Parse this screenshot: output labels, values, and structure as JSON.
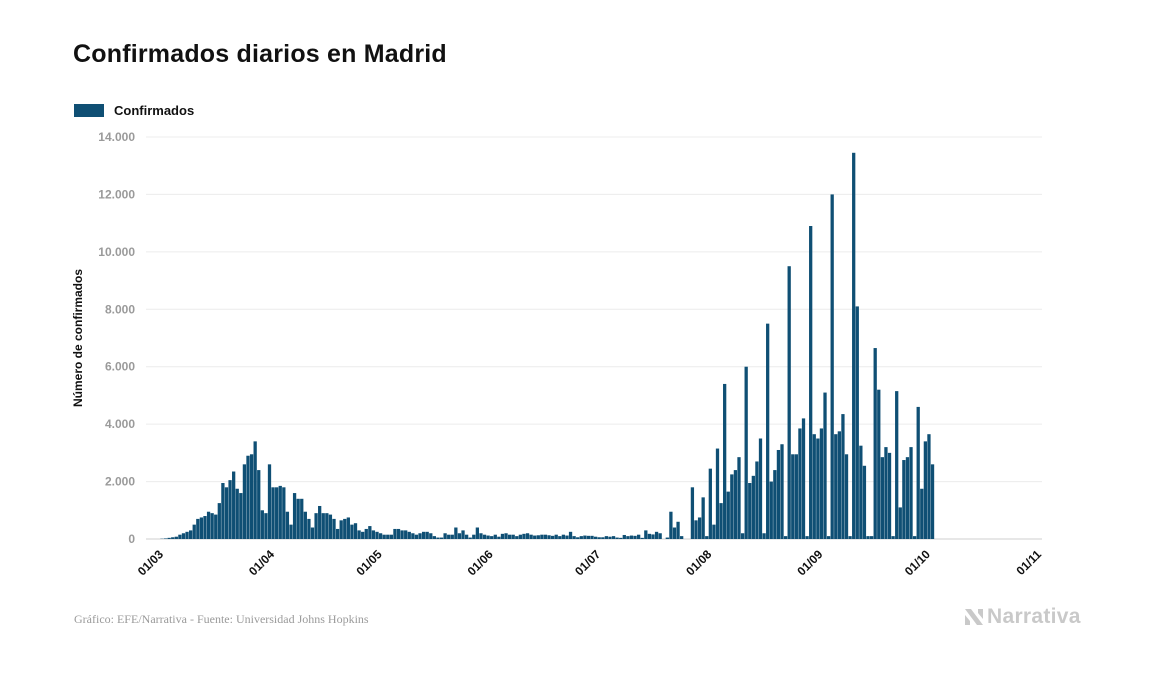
{
  "chart_data": {
    "type": "bar",
    "title": "Confirmados diarios en Madrid",
    "ylabel": "Número de confirmados",
    "xlabel": "",
    "legend": {
      "position": "top-left",
      "entries": [
        "Confirmados"
      ]
    },
    "ylim": [
      0,
      14000
    ],
    "yticks": [
      "0",
      "2.000",
      "4.000",
      "6.000",
      "8.000",
      "10.000",
      "12.000",
      "14.000"
    ],
    "yticks_values": [
      0,
      2000,
      4000,
      6000,
      8000,
      10000,
      12000,
      14000
    ],
    "xticks": [
      "01/03",
      "01/04",
      "01/05",
      "01/06",
      "01/07",
      "01/08",
      "01/09",
      "01/10",
      "01/11"
    ],
    "x_start_date": "2020-02-25",
    "x_end_date": "2020-11-01",
    "grid": true,
    "color": "#0f4f74",
    "series": [
      {
        "name": "Confirmados",
        "start_date": "2020-02-25",
        "values": [
          0,
          0,
          0,
          0,
          10,
          20,
          40,
          60,
          80,
          150,
          200,
          250,
          300,
          500,
          700,
          750,
          800,
          950,
          900,
          850,
          1250,
          1950,
          1800,
          2050,
          2350,
          1750,
          1600,
          2600,
          2900,
          2950,
          3400,
          2400,
          1000,
          900,
          2600,
          1800,
          1800,
          1850,
          1800,
          950,
          500,
          1600,
          1400,
          1400,
          950,
          700,
          400,
          900,
          1150,
          900,
          900,
          850,
          700,
          350,
          650,
          700,
          750,
          500,
          550,
          300,
          250,
          350,
          450,
          300,
          250,
          200,
          150,
          150,
          150,
          350,
          350,
          300,
          300,
          250,
          200,
          150,
          200,
          250,
          250,
          200,
          100,
          50,
          50,
          200,
          150,
          150,
          400,
          200,
          300,
          150,
          50,
          150,
          400,
          200,
          150,
          120,
          100,
          150,
          80,
          180,
          200,
          150,
          150,
          100,
          150,
          180,
          200,
          150,
          120,
          130,
          150,
          150,
          130,
          110,
          150,
          100,
          150,
          120,
          250,
          100,
          60,
          100,
          120,
          110,
          110,
          80,
          60,
          60,
          100,
          80,
          100,
          50,
          40,
          140,
          100,
          120,
          110,
          150,
          40,
          300,
          180,
          160,
          250,
          200,
          0,
          50,
          950,
          400,
          600,
          100,
          0,
          0,
          1800,
          650,
          750,
          1450,
          100,
          2450,
          500,
          3150,
          1250,
          5400,
          1650,
          2250,
          2400,
          2850,
          200,
          6000,
          1950,
          2200,
          2700,
          3500,
          200,
          7500,
          2000,
          2400,
          3100,
          3300,
          100,
          9500,
          2950,
          2950,
          3850,
          4200,
          100,
          10900,
          3650,
          3500,
          3850,
          5100,
          100,
          12000,
          3650,
          3750,
          4350,
          2950,
          100,
          13450,
          8100,
          3250,
          2550,
          100,
          100,
          6650,
          5200,
          2850,
          3200,
          3000,
          100,
          5150,
          1100,
          2750,
          2850,
          3200,
          100,
          4600,
          1750,
          3400,
          3650,
          2600
        ]
      }
    ]
  },
  "footer": {
    "source": "Gráfico: EFE/Narrativa - Fuente: Universidad Johns Hopkins",
    "brand": "Narrativa",
    "brand_icon": "narrativa-logo-icon"
  }
}
